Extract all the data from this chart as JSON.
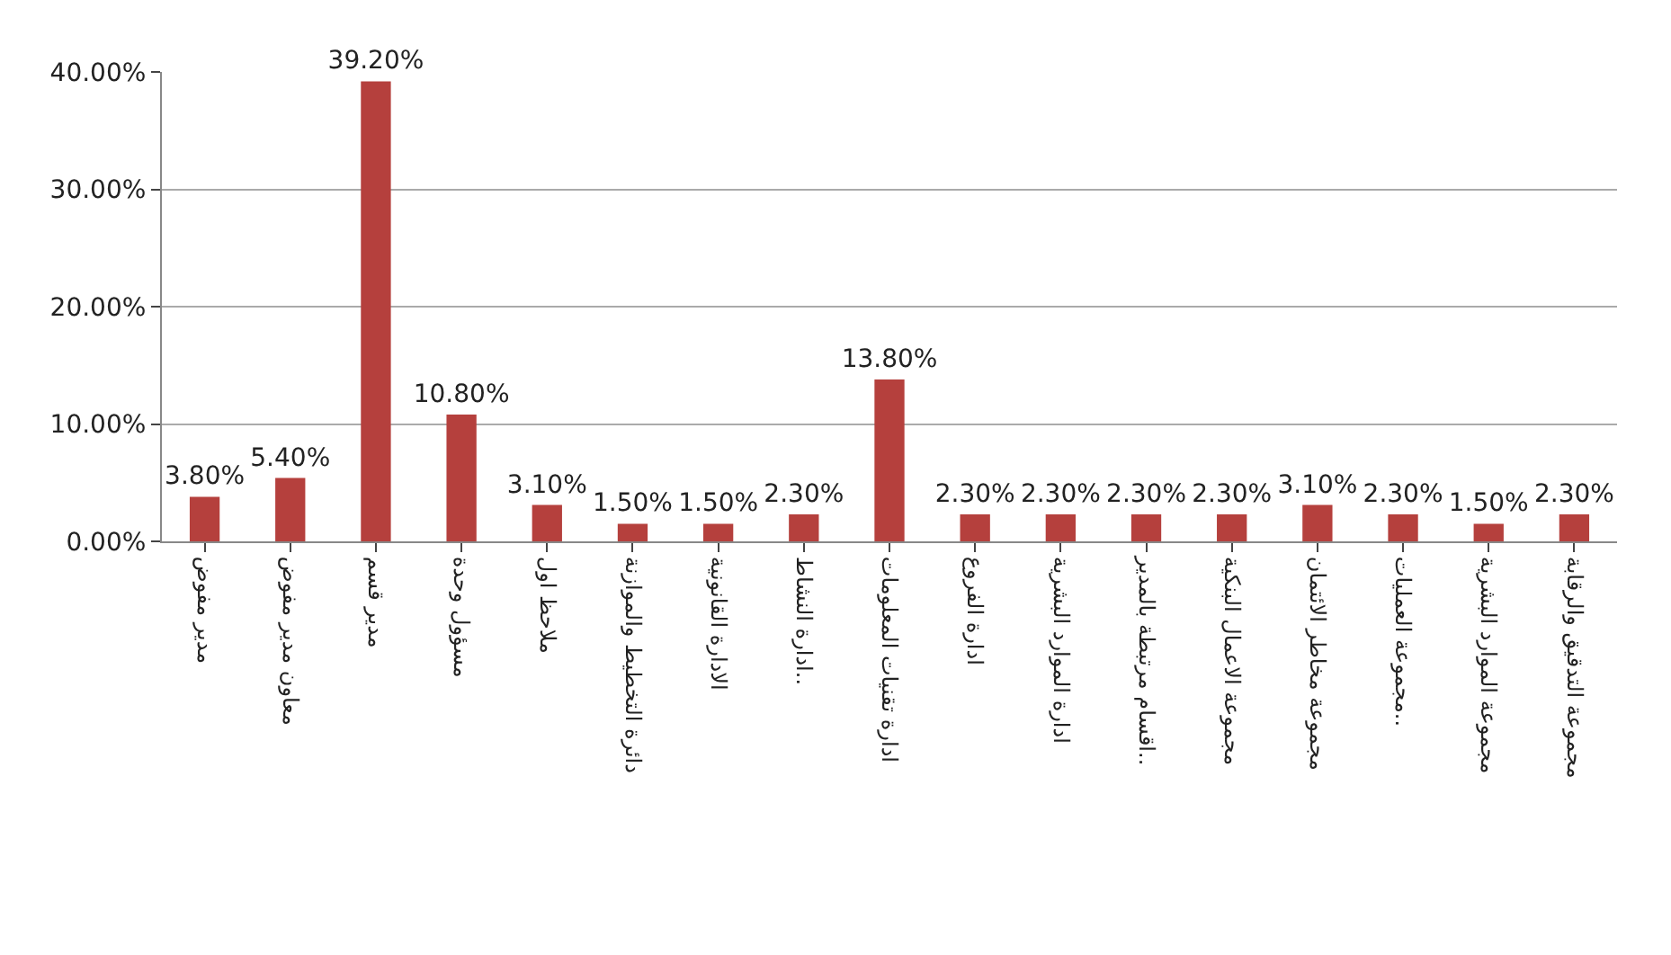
{
  "chart_data": {
    "type": "bar",
    "categories": [
      "مدير مفوض",
      "معاون مدير مفوض",
      "مدير قسم",
      "مسؤول وحدة",
      "ملاحظ اول",
      "دائرة التخطيط والموازنة",
      "الادارة القانونية",
      "ادارة النشاط..",
      "ادارة تقنيات المعلومات",
      "ادارة الفروع",
      "ادارة الموارد البشرية",
      "اقسام مرتبطة بالمدير..",
      "مجموعة الاعمال البنكية",
      "مجموعة مخاطر الائتمان",
      "مجموعة العمليات..",
      "مجموعة الموارد البشرية",
      "مجموعة التدقيق والرقابة"
    ],
    "values": [
      3.8,
      5.4,
      39.2,
      10.8,
      3.1,
      1.5,
      1.5,
      2.3,
      13.8,
      2.3,
      2.3,
      2.3,
      2.3,
      3.1,
      2.3,
      1.5,
      2.3
    ],
    "value_labels": [
      "3.80%",
      "5.40%",
      "39.20%",
      "10.80%",
      "3.10%",
      "1.50%",
      "1.50%",
      "2.30%",
      "13.80%",
      "2.30%",
      "2.30%",
      "2.30%",
      "2.30%",
      "3.10%",
      "2.30%",
      "1.50%",
      "2.30%"
    ],
    "color": "#b5403d",
    "ylim": [
      0,
      40
    ],
    "yticks": [
      {
        "value": 0,
        "label": "0.00%"
      },
      {
        "value": 10,
        "label": "10.00%"
      },
      {
        "value": 20,
        "label": "20.00%"
      },
      {
        "value": 30,
        "label": "30.00%"
      },
      {
        "value": 40,
        "label": "40.00%"
      }
    ],
    "grid": "y"
  }
}
